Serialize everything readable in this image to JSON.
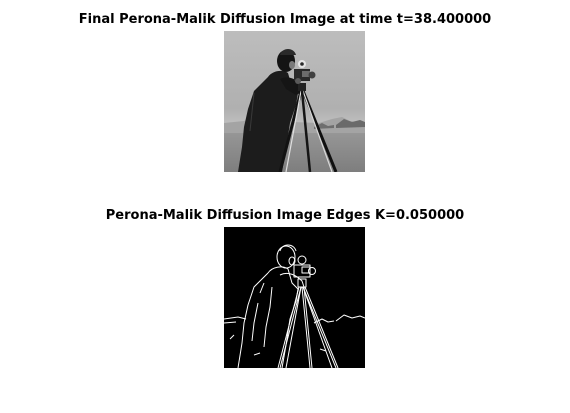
{
  "figure": {
    "top_title": "Final Perona-Malik Diffusion Image at time t=38.400000",
    "bottom_title": "Perona-Malik Diffusion Image Edges K=0.050000"
  },
  "images": {
    "top": {
      "icon": "cameraman-diffused-grayscale-photo",
      "colors": {
        "sky": "#b8b8b8",
        "ground": "#8a8a8a",
        "figure": "#1a1a1a"
      }
    },
    "bottom": {
      "icon": "cameraman-edge-map",
      "colors": {
        "background": "#000000",
        "edges": "#ffffff"
      }
    }
  }
}
